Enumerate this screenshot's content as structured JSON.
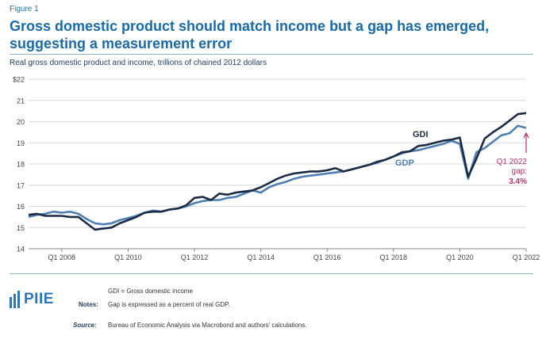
{
  "figure_label": "Figure 1",
  "title": "Gross domestic product should match income but a gap has emerged, suggesting a measurement error",
  "chart_data": {
    "type": "line",
    "subtitle": "Real gross domestic product and income, trillions of chained 2012 dollars",
    "xlabel": "",
    "ylabel": "",
    "x": [
      "2007Q1",
      "2007Q2",
      "2007Q3",
      "2007Q4",
      "2008Q1",
      "2008Q2",
      "2008Q3",
      "2008Q4",
      "2009Q1",
      "2009Q2",
      "2009Q3",
      "2009Q4",
      "2010Q1",
      "2010Q2",
      "2010Q3",
      "2010Q4",
      "2011Q1",
      "2011Q2",
      "2011Q3",
      "2011Q4",
      "2012Q1",
      "2012Q2",
      "2012Q3",
      "2012Q4",
      "2013Q1",
      "2013Q2",
      "2013Q3",
      "2013Q4",
      "2014Q1",
      "2014Q2",
      "2014Q3",
      "2014Q4",
      "2015Q1",
      "2015Q2",
      "2015Q3",
      "2015Q4",
      "2016Q1",
      "2016Q2",
      "2016Q3",
      "2016Q4",
      "2017Q1",
      "2017Q2",
      "2017Q3",
      "2017Q4",
      "2018Q1",
      "2018Q2",
      "2018Q3",
      "2018Q4",
      "2019Q1",
      "2019Q2",
      "2019Q3",
      "2019Q4",
      "2020Q1",
      "2020Q2",
      "2020Q3",
      "2020Q4",
      "2021Q1",
      "2021Q2",
      "2021Q3",
      "2021Q4",
      "2022Q1"
    ],
    "x_tick_labels": [
      "Q1 2008",
      "Q1 2010",
      "Q1 2012",
      "Q1 2014",
      "Q1 2016",
      "Q1 2018",
      "Q1 2020",
      "Q1 2022"
    ],
    "x_tick_positions": [
      "2008Q1",
      "2010Q1",
      "2012Q1",
      "2014Q1",
      "2016Q1",
      "2018Q1",
      "2020Q1",
      "2022Q1"
    ],
    "y_tick_labels": [
      "14",
      "15",
      "16",
      "17",
      "18",
      "19",
      "20",
      "21",
      "$22"
    ],
    "ylim": [
      14,
      22
    ],
    "grid": "horizontal",
    "series": [
      {
        "name": "GDI",
        "color": "#1c2b45",
        "values": [
          15.6,
          15.65,
          15.55,
          15.55,
          15.55,
          15.5,
          15.5,
          15.2,
          14.9,
          14.95,
          15.0,
          15.2,
          15.35,
          15.5,
          15.7,
          15.75,
          15.75,
          15.85,
          15.9,
          16.05,
          16.4,
          16.45,
          16.3,
          16.6,
          16.55,
          16.65,
          16.7,
          16.75,
          16.9,
          17.1,
          17.3,
          17.45,
          17.55,
          17.6,
          17.65,
          17.65,
          17.7,
          17.8,
          17.65,
          17.75,
          17.85,
          17.95,
          18.1,
          18.2,
          18.35,
          18.55,
          18.6,
          18.85,
          18.9,
          19.0,
          19.1,
          19.15,
          19.25,
          17.4,
          18.25,
          19.2,
          19.5,
          19.75,
          20.05,
          20.35,
          20.4
        ]
      },
      {
        "name": "GDP",
        "color": "#4d7fb4",
        "values": [
          15.5,
          15.6,
          15.65,
          15.75,
          15.7,
          15.75,
          15.65,
          15.4,
          15.2,
          15.15,
          15.2,
          15.35,
          15.45,
          15.55,
          15.7,
          15.8,
          15.75,
          15.85,
          15.9,
          16.0,
          16.15,
          16.25,
          16.3,
          16.3,
          16.4,
          16.45,
          16.6,
          16.75,
          16.65,
          16.9,
          17.05,
          17.15,
          17.3,
          17.4,
          17.45,
          17.5,
          17.55,
          17.6,
          17.65,
          17.75,
          17.85,
          17.95,
          18.05,
          18.2,
          18.35,
          18.5,
          18.6,
          18.65,
          18.75,
          18.85,
          18.95,
          19.1,
          18.95,
          17.3,
          18.55,
          18.75,
          19.05,
          19.35,
          19.45,
          19.8,
          19.7
        ]
      }
    ],
    "annotations": {
      "gdi_label": "GDI",
      "gdp_label": "GDP",
      "gap_line1": "Q1 2022",
      "gap_line2": "gap:",
      "gap_value": "3.4%",
      "gap_color": "#b3306a"
    }
  },
  "notes": {
    "definition": "GDI = Gross domestic income",
    "label": "Notes:",
    "text": "Gap is expressed as a percent of real GDP."
  },
  "source": {
    "label": "Source:",
    "text": "Bureau of Economic Analysis via Macrobond and authors' calculations."
  },
  "logo": {
    "text": "PIIE"
  }
}
